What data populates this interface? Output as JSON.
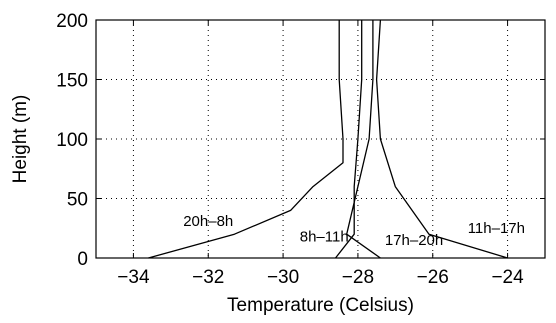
{
  "chart_data": {
    "type": "line",
    "title": "",
    "xlabel": "Temperature (Celsius)",
    "ylabel": "Height (m)",
    "xlim": [
      -35,
      -23
    ],
    "ylim": [
      0,
      200
    ],
    "xticks": [
      -34,
      -32,
      -30,
      -28,
      -26,
      -24
    ],
    "yticks": [
      0,
      50,
      100,
      150,
      200
    ],
    "xtick_labels": [
      "−34",
      "−32",
      "−30",
      "−28",
      "−26",
      "−24"
    ],
    "ytick_labels": [
      "0",
      "50",
      "100",
      "150",
      "200"
    ],
    "grid": true,
    "series": [
      {
        "name": "20h–8h",
        "x": [
          -33.6,
          -31.3,
          -29.8,
          -29.2,
          -28.4,
          -28.4,
          -28.5,
          -28.5
        ],
        "y": [
          0,
          20,
          40,
          60,
          80,
          100,
          150,
          200
        ]
      },
      {
        "name": "8h–11h",
        "x": [
          -28.6,
          -28.1,
          -28.1,
          -28.0,
          -27.9,
          -27.9
        ],
        "y": [
          0,
          20,
          60,
          100,
          150,
          200
        ]
      },
      {
        "name": "17h–20h",
        "x": [
          -27.4,
          -28.3,
          -27.7,
          -27.6,
          -27.6
        ],
        "y": [
          0,
          20,
          100,
          150,
          200
        ]
      },
      {
        "name": "11h–17h",
        "x": [
          -24.0,
          -26.1,
          -27.0,
          -27.4,
          -27.5,
          -27.4
        ],
        "y": [
          0,
          20,
          60,
          100,
          150,
          200
        ]
      }
    ],
    "annotations": [
      {
        "text": "20h–8h",
        "x": -32.0,
        "y": 27
      },
      {
        "text": "8h–11h",
        "x": -28.9,
        "y": 14
      },
      {
        "text": "17h–20h",
        "x": -26.5,
        "y": 11
      },
      {
        "text": "11h–17h",
        "x": -24.3,
        "y": 21
      }
    ]
  }
}
